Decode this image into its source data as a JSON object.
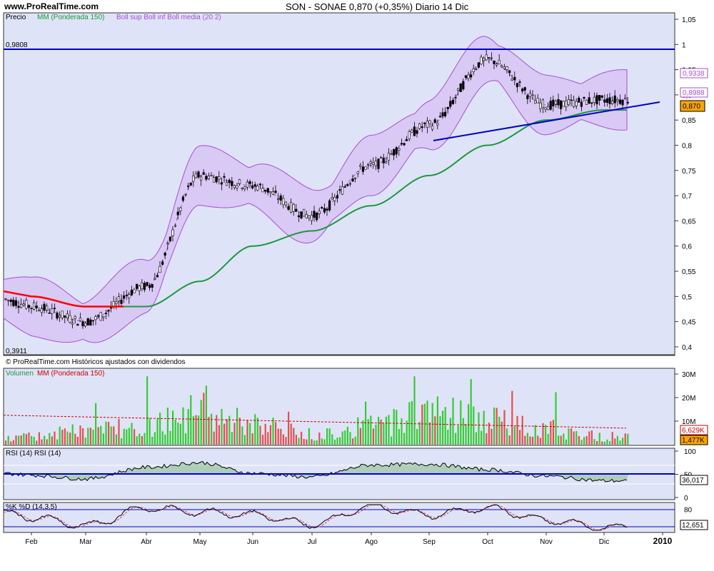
{
  "header": {
    "site": "www.ProRealTime.com",
    "title": "SON - SONAE    0,870 (+0,35%)   Diario  14 Dic"
  },
  "price_panel": {
    "legend": {
      "precio": "Precio",
      "ma": "MM (Ponderada 150)",
      "boll": "Boll sup Boll inf Boll media (20 2)"
    },
    "footer": "© ProRealTime.com  Históricos ajustados con dividendos",
    "hline_label": "0,9808",
    "low_label": "0,3911",
    "y_ticks": [
      "1,05",
      "1",
      "0,95",
      "0,9",
      "0,85",
      "0,8",
      "0,75",
      "0,7",
      "0,65",
      "0,6",
      "0,55",
      "0,5",
      "0,45",
      "0,4"
    ],
    "tags": {
      "boll_sup": "0,9338",
      "boll_mid": "0,8988",
      "price": "0,870"
    }
  },
  "volume_panel": {
    "legend": {
      "vol": "Volumen",
      "ma": "MM (Ponderada 150)"
    },
    "y_ticks": [
      "30M",
      "20M",
      "10M"
    ],
    "tags": {
      "vol_ma": "6,629K",
      "vol": "1,477K"
    }
  },
  "rsi_panel": {
    "legend": "RSI (14)   RSI (14)",
    "y_ticks": [
      "100",
      "50",
      "0"
    ],
    "tag": "36,017"
  },
  "stoch_panel": {
    "legend": "%K %D (14,3,5)",
    "y_ticks": [
      "80",
      "20"
    ],
    "tag": "12,651"
  },
  "x_axis": {
    "labels": [
      "Feb",
      "Mar",
      "Abr",
      "May",
      "Jun",
      "Jul",
      "Ago",
      "Sep",
      "Oct",
      "Nov",
      "Dic",
      "2010"
    ]
  },
  "colors": {
    "panel_bg": "#dfe3f7",
    "ma": "#1a9a3c",
    "ma_red": "#ff0000",
    "boll_fill": "#d8c4f4",
    "boll_line": "#a74fd3",
    "trend": "#0000cc",
    "up_bar": "#33cc33",
    "down_bar": "#e05050",
    "price_tag": "#ffa500"
  },
  "chart_data": [
    {
      "type": "line",
      "title": "SON - SONAE",
      "y_range": [
        0.39,
        1.05
      ],
      "x": [
        "Feb",
        "Mar",
        "Abr",
        "May",
        "Jun",
        "Jul",
        "Ago",
        "Sep",
        "Oct",
        "Nov",
        "Dic"
      ],
      "series": [
        {
          "name": "Precio",
          "values": [
            0.48,
            0.45,
            0.52,
            0.74,
            0.72,
            0.66,
            0.76,
            0.84,
            0.97,
            0.88,
            0.89
          ]
        },
        {
          "name": "MM (Ponderada 150)",
          "values": [
            0.5,
            0.48,
            0.48,
            0.53,
            0.6,
            0.63,
            0.68,
            0.74,
            0.8,
            0.85,
            0.87
          ]
        }
      ],
      "hlines": [
        0.9808
      ],
      "trendline": [
        [
          "Sep",
          0.805
        ],
        [
          "Dic",
          0.87
        ]
      ]
    },
    {
      "type": "bar",
      "title": "Volumen",
      "y_range": [
        0,
        30
      ],
      "unit": "M",
      "categories": [
        "Feb",
        "Mar",
        "Abr",
        "May",
        "Jun",
        "Jul",
        "Ago",
        "Sep",
        "Oct",
        "Nov",
        "Dic"
      ],
      "values": [
        4,
        7,
        10,
        16,
        10,
        5,
        9,
        18,
        12,
        8,
        4
      ]
    },
    {
      "type": "line",
      "title": "RSI (14)",
      "y_range": [
        0,
        100
      ],
      "categories": [
        "Feb",
        "Mar",
        "Abr",
        "May",
        "Jun",
        "Jul",
        "Ago",
        "Sep",
        "Oct",
        "Nov",
        "Dic"
      ],
      "values": [
        48,
        40,
        65,
        75,
        52,
        44,
        70,
        72,
        60,
        46,
        36
      ]
    },
    {
      "type": "line",
      "title": "%K %D (14,3,5)",
      "y_range": [
        0,
        100
      ],
      "categories": [
        "Feb",
        "Mar",
        "Abr",
        "May",
        "Jun",
        "Jul",
        "Ago",
        "Sep",
        "Oct",
        "Nov",
        "Dic"
      ],
      "values": [
        50,
        20,
        85,
        70,
        60,
        25,
        90,
        60,
        85,
        40,
        13
      ]
    }
  ]
}
